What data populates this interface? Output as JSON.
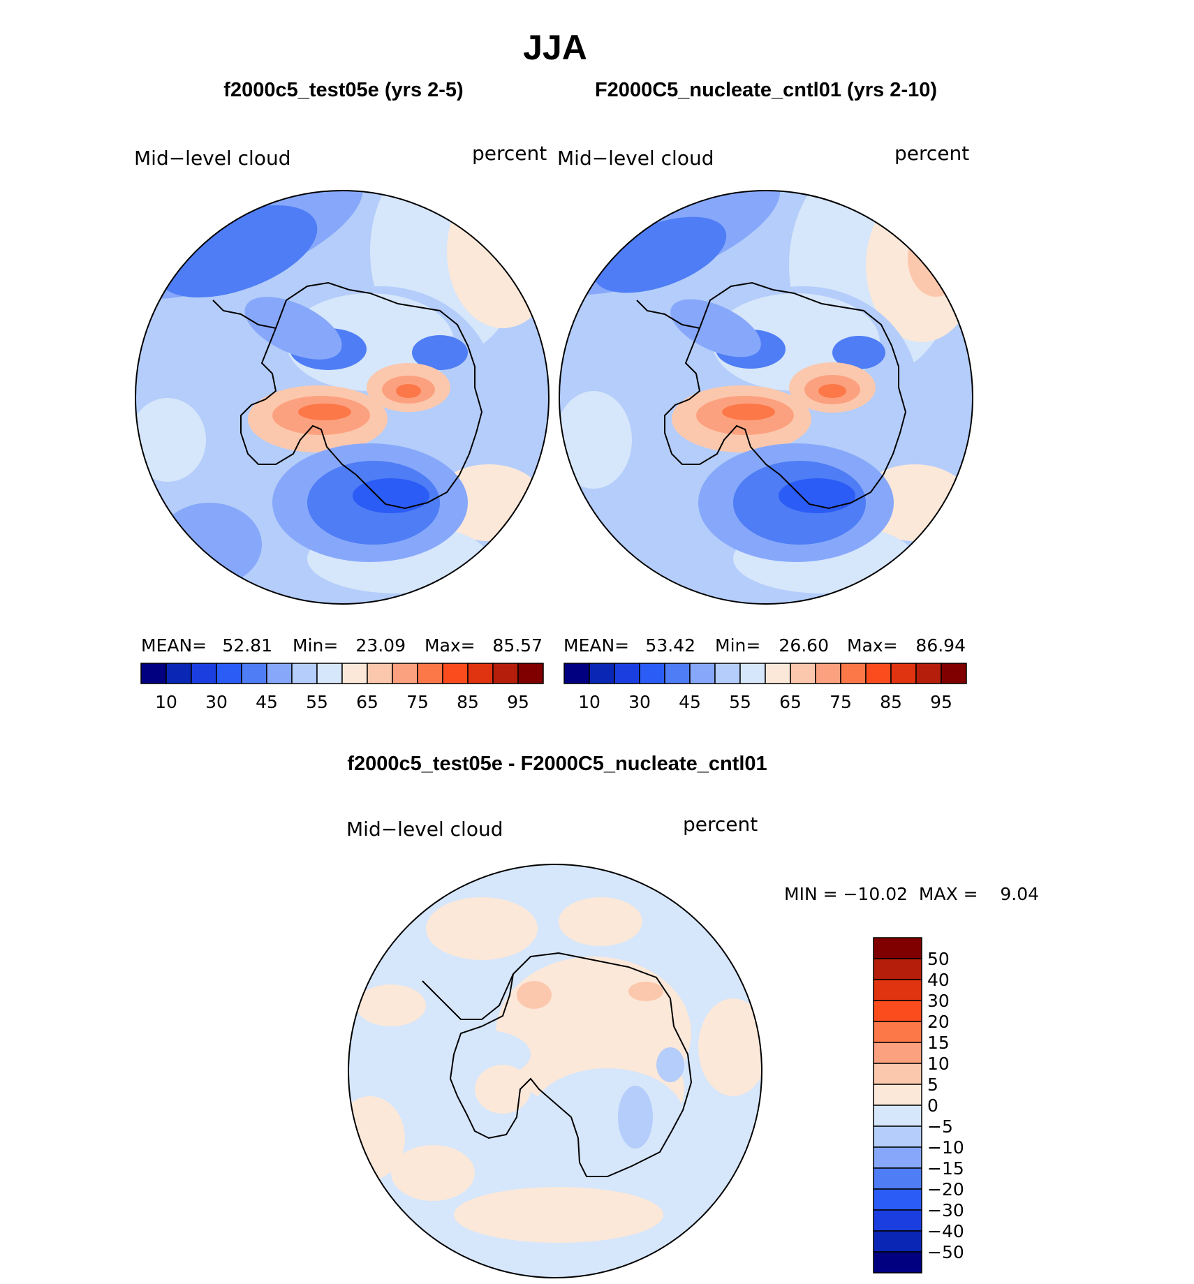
{
  "chart_data": {
    "type": "heatmap",
    "title": "JJA",
    "panels": [
      {
        "title": "f2000c5_test05e (yrs 2-5)",
        "variable": "Mid−level  cloud",
        "units": "percent",
        "stats": {
          "mean_label": "MEAN=",
          "mean": "52.81",
          "min_label": "Min=",
          "min": "23.09",
          "max_label": "Max=",
          "max": "85.57"
        }
      },
      {
        "title": "F2000C5_nucleate_cntl01 (yrs 2-10)",
        "variable": "Mid−level  cloud",
        "units": "percent",
        "stats": {
          "mean_label": "MEAN=",
          "mean": "53.42",
          "min_label": "Min=",
          "min": "26.60",
          "max_label": "Max=",
          "max": "86.94"
        }
      },
      {
        "title": "f2000c5_test05e - F2000C5_nucleate_cntl01",
        "variable": "Mid−level  cloud",
        "units": "percent",
        "stats_text": "MIN = −10.02  MAX =    9.04"
      }
    ],
    "abs_colorbar": {
      "tick_labels": [
        "10",
        "30",
        "45",
        "55",
        "65",
        "75",
        "85",
        "95"
      ],
      "colors": [
        "#000080",
        "#0a26b4",
        "#1a3ee0",
        "#2b5cf5",
        "#4e7df5",
        "#87a8fa",
        "#b4cdfa",
        "#d6e6fb",
        "#fbe8d9",
        "#fcc8ad",
        "#fca17f",
        "#fc7848",
        "#fb4c1e",
        "#e0330f",
        "#b41e0a",
        "#800000"
      ]
    },
    "diff_colorbar": {
      "tick_labels": [
        "50",
        "40",
        "30",
        "20",
        "15",
        "10",
        "5",
        "0",
        "−5",
        "−10",
        "−15",
        "−20",
        "−30",
        "−40",
        "−50"
      ],
      "colors": [
        "#800000",
        "#b41e0a",
        "#e0330f",
        "#fb4c1e",
        "#fc7848",
        "#fca17f",
        "#fcc8ad",
        "#fbe8d9",
        "#d6e6fb",
        "#b4cdfa",
        "#87a8fa",
        "#4e7df5",
        "#2b5cf5",
        "#1a3ee0",
        "#0a26b4",
        "#000080"
      ]
    }
  }
}
